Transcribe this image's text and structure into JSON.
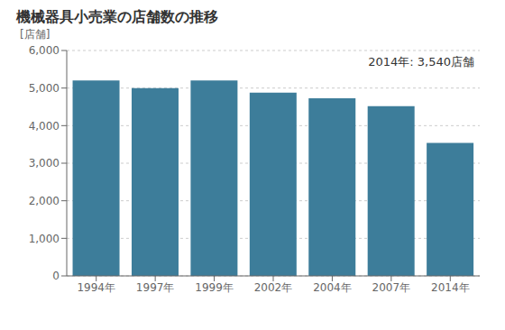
{
  "chart_data": {
    "type": "bar",
    "title": "機械器具小売業の店舗数の推移",
    "ylabel": "[店舗]",
    "annotation": "2014年: 3,540店舗",
    "categories": [
      "1994年",
      "1997年",
      "1999年",
      "2002年",
      "2004年",
      "2007年",
      "2014年"
    ],
    "values": [
      5200,
      5000,
      5200,
      4880,
      4730,
      4520,
      3540
    ],
    "color": "#3d7d9a",
    "ylim": [
      0,
      6000
    ],
    "yticks": [
      0,
      {
        "value": 1000,
        "label": "1,000"
      },
      {
        "value": 2000,
        "label": "2,000"
      },
      {
        "value": 3000,
        "label": "3,000"
      },
      {
        "value": 4000,
        "label": "4,000"
      },
      {
        "value": 5000,
        "label": "5,000"
      },
      {
        "value": 6000,
        "label": "6,000"
      }
    ],
    "grid": true
  }
}
